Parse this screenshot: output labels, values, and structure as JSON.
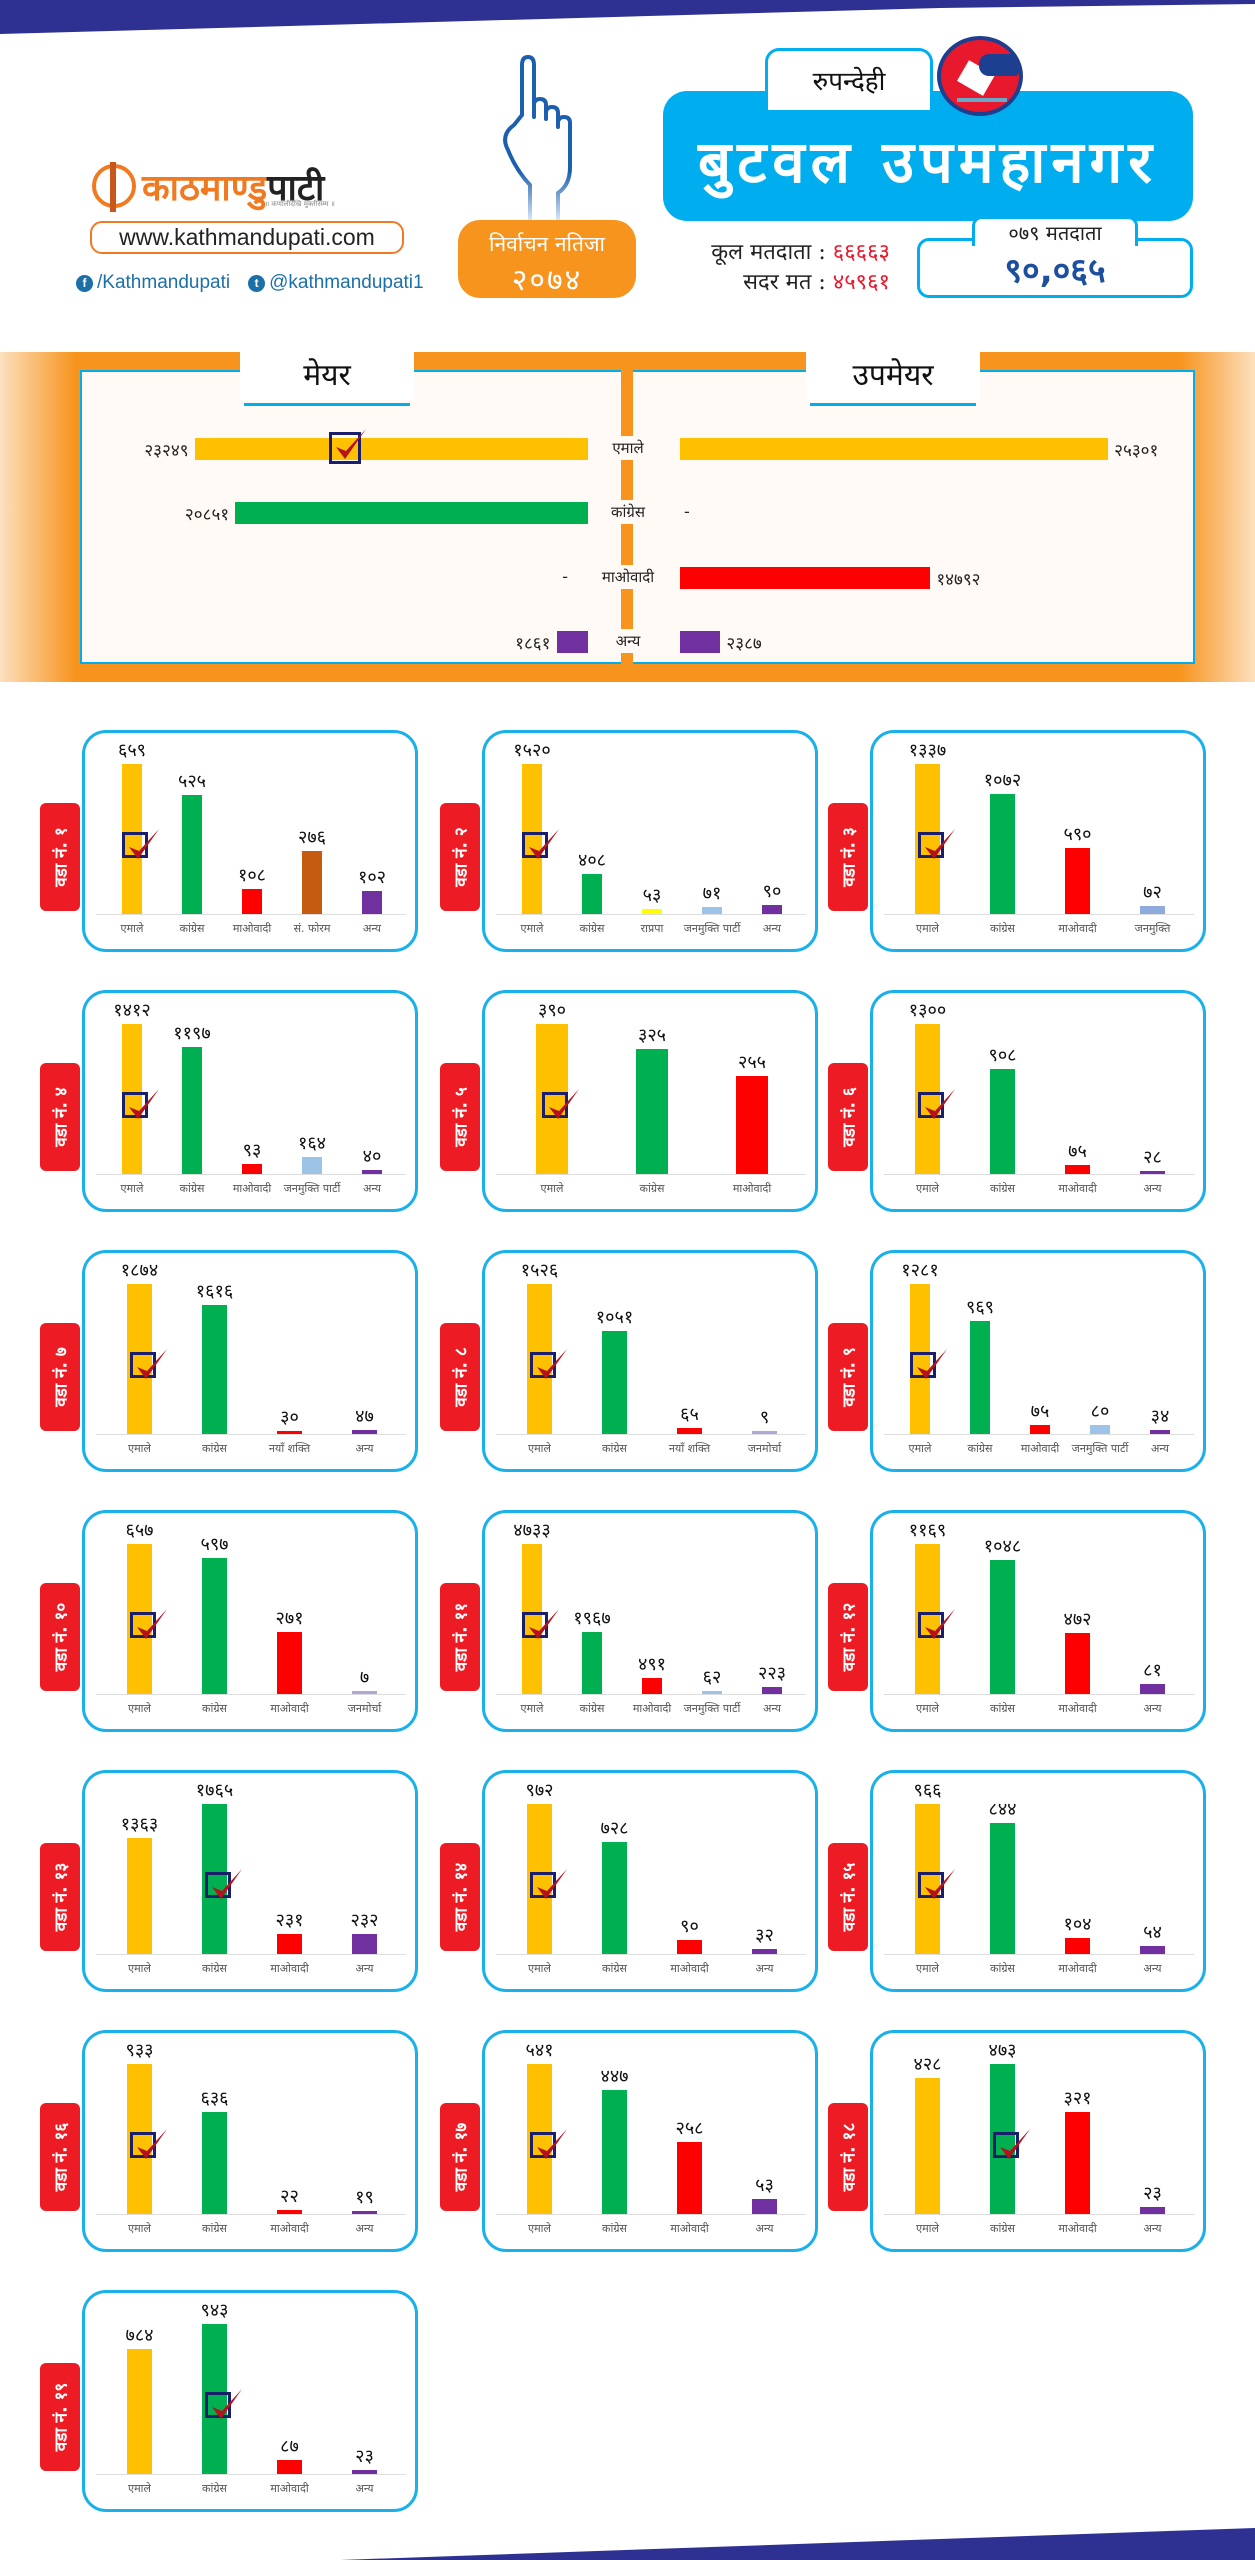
{
  "colors": {
    "navy_band": "#2e3192",
    "accent_blue": "#00aeef",
    "accent_orange": "#f7941d",
    "tag_red": "#ed1c24",
    "party": {
      "एमाले": "#ffc000",
      "कांग्रेस": "#00b050",
      "माओवादी": "#ff0000",
      "अन्य": "#7030a0",
      "सं. फोरम": "#c55a11",
      "राप्रपा": "#ffff00",
      "जनमुक्ति पार्टी": "#9dc3e6",
      "जनमुक्ति": "#8faadc",
      "नयाँ शक्ति": "#ff0000",
      "जनमोर्चा": "#b4a7d6"
    }
  },
  "header": {
    "logo_part1": "काठमाण्डु",
    "logo_part2": "पाटी",
    "logo_tagline": "॥ कर्णालीदेखि मुक्तीसम्म ॥",
    "website": "www.kathmandupati.com",
    "facebook": "/Kathmandupati",
    "twitter": "@kathmandupati1",
    "badge_line1": "निर्वाचन नतिजा",
    "badge_line2": "२०७४",
    "district": "रुपन्देही",
    "city": "बुटवल उपमहानगर",
    "total_voters_label": "कूल मतदाता :",
    "total_voters_value": "६६६६३",
    "valid_votes_label": "सदर मत :",
    "valid_votes_value": "४५९६१",
    "voters_079_label": "०७९ मतदाता",
    "voters_079_value": "९०,०६५"
  },
  "chart_data": [
    {
      "type": "bar",
      "title": "मेयर / उपमेयर",
      "orientation": "horizontal-diverging",
      "categories": [
        "एमाले",
        "कांग्रेस",
        "माओवादी",
        "अन्य"
      ],
      "series": [
        {
          "name": "मेयर",
          "values": [
            23249,
            20851,
            null,
            1861
          ],
          "labels": [
            "२३२४९",
            "२०८५१",
            "-",
            "१८६१"
          ],
          "winner": "एमाले"
        },
        {
          "name": "उपमेयर",
          "values": [
            25301,
            null,
            14792,
            2387
          ],
          "labels": [
            "२५३०१",
            "-",
            "१४७९२",
            "२३८७"
          ]
        }
      ]
    },
    {
      "type": "bar",
      "title": "वडा नं. १",
      "categories": [
        "एमाले",
        "कांग्रेस",
        "माओवादी",
        "सं. फोरम",
        "अन्य"
      ],
      "values": [
        659,
        525,
        108,
        276,
        102
      ],
      "labels": [
        "६५९",
        "५२५",
        "१०८",
        "२७६",
        "१०२"
      ],
      "winner": "एमाले"
    },
    {
      "type": "bar",
      "title": "वडा नं. २",
      "categories": [
        "एमाले",
        "कांग्रेस",
        "राप्रपा",
        "जनमुक्ति पार्टी",
        "अन्य"
      ],
      "values": [
        1520,
        408,
        53,
        71,
        90
      ],
      "labels": [
        "१५२०",
        "४०८",
        "५३",
        "७१",
        "९०"
      ],
      "winner": "एमाले"
    },
    {
      "type": "bar",
      "title": "वडा नं. ३",
      "categories": [
        "एमाले",
        "कांग्रेस",
        "माओवादी",
        "जनमुक्ति"
      ],
      "values": [
        1337,
        1072,
        590,
        72
      ],
      "labels": [
        "१३३७",
        "१०७२",
        "५९०",
        "७२"
      ],
      "winner": "एमाले"
    },
    {
      "type": "bar",
      "title": "वडा नं. ४",
      "categories": [
        "एमाले",
        "कांग्रेस",
        "माओवादी",
        "जनमुक्ति पार्टी",
        "अन्य"
      ],
      "values": [
        1412,
        1197,
        93,
        164,
        40
      ],
      "labels": [
        "१४१२",
        "११९७",
        "९३",
        "१६४",
        "४०"
      ],
      "winner": "एमाले"
    },
    {
      "type": "bar",
      "title": "वडा नं. ५",
      "categories": [
        "एमाले",
        "कांग्रेस",
        "माओवादी"
      ],
      "values": [
        390,
        325,
        255
      ],
      "labels": [
        "३९०",
        "३२५",
        "२५५"
      ],
      "winner": "एमाले"
    },
    {
      "type": "bar",
      "title": "वडा नं. ६",
      "categories": [
        "एमाले",
        "कांग्रेस",
        "माओवादी",
        "अन्य"
      ],
      "values": [
        1300,
        908,
        75,
        28
      ],
      "labels": [
        "१३००",
        "९०८",
        "७५",
        "२८"
      ],
      "winner": "एमाले"
    },
    {
      "type": "bar",
      "title": "वडा नं. ७",
      "categories": [
        "एमाले",
        "कांग्रेस",
        "नयाँ शक्ति",
        "अन्य"
      ],
      "values": [
        1874,
        1616,
        30,
        47
      ],
      "labels": [
        "१८७४",
        "१६१६",
        "३०",
        "४७"
      ],
      "winner": "एमाले"
    },
    {
      "type": "bar",
      "title": "वडा नं. ८",
      "categories": [
        "एमाले",
        "कांग्रेस",
        "नयाँ शक्ति",
        "जनमोर्चा"
      ],
      "values": [
        1526,
        1051,
        65,
        9
      ],
      "labels": [
        "१५२६",
        "१०५१",
        "६५",
        "९"
      ],
      "winner": "एमाले"
    },
    {
      "type": "bar",
      "title": "वडा नं. ९",
      "categories": [
        "एमाले",
        "कांग्रेस",
        "माओवादी",
        "जनमुक्ति पार्टी",
        "अन्य"
      ],
      "values": [
        1281,
        969,
        75,
        80,
        34
      ],
      "labels": [
        "१२८१",
        "९६९",
        "७५",
        "८०",
        "३४"
      ],
      "winner": "एमाले"
    },
    {
      "type": "bar",
      "title": "वडा नं. १०",
      "categories": [
        "एमाले",
        "कांग्रेस",
        "माओवादी",
        "जनमोर्चा"
      ],
      "values": [
        657,
        597,
        271,
        7
      ],
      "labels": [
        "६५७",
        "५९७",
        "२७१",
        "७"
      ],
      "winner": "एमाले"
    },
    {
      "type": "bar",
      "title": "वडा नं. ११",
      "categories": [
        "एमाले",
        "कांग्रेस",
        "माओवादी",
        "जनमुक्ति पार्टी",
        "अन्य"
      ],
      "values": [
        4733,
        1967,
        491,
        62,
        223
      ],
      "labels": [
        "४७३३",
        "१९६७",
        "४९१",
        "६२",
        "२२३"
      ],
      "winner": "एमाले"
    },
    {
      "type": "bar",
      "title": "वडा नं. १२",
      "categories": [
        "एमाले",
        "कांग्रेस",
        "माओवादी",
        "अन्य"
      ],
      "values": [
        1169,
        1048,
        472,
        81
      ],
      "labels": [
        "११६९",
        "१०४८",
        "४७२",
        "८१"
      ],
      "winner": "एमाले"
    },
    {
      "type": "bar",
      "title": "वडा नं. १३",
      "categories": [
        "एमाले",
        "कांग्रेस",
        "माओवादी",
        "अन्य"
      ],
      "values": [
        1363,
        1765,
        231,
        232
      ],
      "labels": [
        "१३६३",
        "१७६५",
        "२३१",
        "२३२"
      ],
      "winner": "कांग्रेस"
    },
    {
      "type": "bar",
      "title": "वडा नं. १४",
      "categories": [
        "एमाले",
        "कांग्रेस",
        "माओवादी",
        "अन्य"
      ],
      "values": [
        972,
        728,
        90,
        32
      ],
      "labels": [
        "९७२",
        "७२८",
        "९०",
        "३२"
      ],
      "winner": "एमाले"
    },
    {
      "type": "bar",
      "title": "वडा नं. १५",
      "categories": [
        "एमाले",
        "कांग्रेस",
        "माओवादी",
        "अन्य"
      ],
      "values": [
        966,
        844,
        104,
        54
      ],
      "labels": [
        "९६६",
        "८४४",
        "१०४",
        "५४"
      ],
      "winner": "एमाले"
    },
    {
      "type": "bar",
      "title": "वडा नं. १६",
      "categories": [
        "एमाले",
        "कांग्रेस",
        "माओवादी",
        "अन्य"
      ],
      "values": [
        933,
        636,
        22,
        19
      ],
      "labels": [
        "९३३",
        "६३६",
        "२२",
        "१९"
      ],
      "winner": "एमाले"
    },
    {
      "type": "bar",
      "title": "वडा नं. १७",
      "categories": [
        "एमाले",
        "कांग्रेस",
        "माओवादी",
        "अन्य"
      ],
      "values": [
        541,
        447,
        258,
        53
      ],
      "labels": [
        "५४१",
        "४४७",
        "२५८",
        "५३"
      ],
      "winner": "एमाले"
    },
    {
      "type": "bar",
      "title": "वडा नं. १८",
      "categories": [
        "एमाले",
        "कांग्रेस",
        "माओवादी",
        "अन्य"
      ],
      "values": [
        428,
        473,
        321,
        23
      ],
      "labels": [
        "४२८",
        "४७३",
        "३२१",
        "२३"
      ],
      "winner": "कांग्रेस"
    },
    {
      "type": "bar",
      "title": "वडा नं. १९",
      "categories": [
        "एमाले",
        "कांग्रेस",
        "माओवादी",
        "अन्य"
      ],
      "values": [
        784,
        943,
        87,
        23
      ],
      "labels": [
        "७८४",
        "९४३",
        "८७",
        "२३"
      ],
      "winner": "कांग्रेस"
    }
  ]
}
